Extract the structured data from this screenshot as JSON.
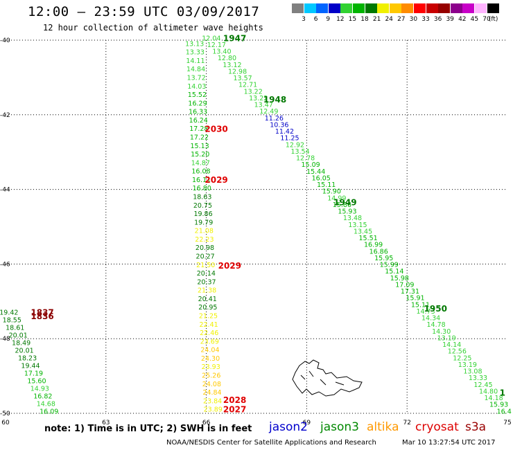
{
  "header": {
    "title": "12:00 — 23:59 UTC 03/09/2017",
    "subtitle": "12 hour collection of altimeter wave heights"
  },
  "color_scale": {
    "unit": "(ft)",
    "bins": [
      {
        "label": "3",
        "color": "#808080"
      },
      {
        "label": "6",
        "color": "#00c8ff"
      },
      {
        "label": "9",
        "color": "#0064ff"
      },
      {
        "label": "12",
        "color": "#0000c8"
      },
      {
        "label": "15",
        "color": "#32d232"
      },
      {
        "label": "18",
        "color": "#00b400"
      },
      {
        "label": "21",
        "color": "#007800"
      },
      {
        "label": "24",
        "color": "#f0f000"
      },
      {
        "label": "27",
        "color": "#ffc800"
      },
      {
        "label": "30",
        "color": "#ff8c00"
      },
      {
        "label": "33",
        "color": "#ff0000"
      },
      {
        "label": "36",
        "color": "#c80000"
      },
      {
        "label": "39",
        "color": "#960000"
      },
      {
        "label": "42",
        "color": "#8c008c"
      },
      {
        "label": "45",
        "color": "#c800c8"
      },
      {
        "label": "70",
        "color": "#ffb4ff"
      },
      {
        "label": "",
        "color": "#000000"
      }
    ]
  },
  "axes": {
    "lon_ticks": [
      "60",
      "63",
      "66",
      "69",
      "72",
      "75"
    ],
    "lat_ticks": [
      "-40",
      "-42",
      "-44",
      "-46",
      "-48",
      "-50"
    ],
    "lon_range": [
      60,
      75
    ],
    "lat_range": [
      -40,
      -50
    ]
  },
  "tracks": [
    {
      "values": [
        "13.13",
        "13.33",
        "14.11",
        "14.84",
        "13.72",
        "14.03",
        "15.52",
        "16.29",
        "16.33",
        "16.24",
        "17.28",
        "17.22",
        "15.13",
        "15.20",
        "14.87",
        "16.08",
        "16.11",
        "16.80",
        "18.63",
        "20.75",
        "19.86",
        "19.79",
        "21.08",
        "22.23",
        "20.98",
        "20.27",
        "21.50",
        "20.14",
        "20.37",
        "21.38",
        "20.41",
        "20.95",
        "21.25",
        "22.41",
        "22.46",
        "23.69",
        "24.04",
        "24.30",
        "23.93",
        "25.26",
        "24.08",
        "24.84",
        "23.84",
        "23.89"
      ],
      "lon0": 65.65,
      "lat0": -40.1,
      "lon1": 66.2,
      "lat1": -49.9,
      "labels": [
        {
          "text": "2030",
          "lon": 66.3,
          "lat": -42.38,
          "color": "#e00000"
        },
        {
          "text": "2029",
          "lon": 66.3,
          "lat": -43.75,
          "color": "#e00000"
        },
        {
          "text": "2029",
          "lon": 66.7,
          "lat": -46.05,
          "color": "#e00000"
        },
        {
          "text": "2028",
          "lon": 66.85,
          "lat": -49.65,
          "color": "#e00000"
        },
        {
          "text": "2027",
          "lon": 66.85,
          "lat": -49.9,
          "color": "#e00000"
        }
      ]
    },
    {
      "values": [
        "12.04",
        "12.17",
        "13.40",
        "12.80",
        "13.12",
        "12.98",
        "13.57",
        "12.71",
        "13.22",
        "13.22",
        "13.47",
        "12.49",
        "11.26",
        "10.36",
        "11.42",
        "11.25",
        "12.92",
        "13.54",
        "12.78",
        "15.09",
        "15.44",
        "16.05",
        "15.11",
        "15.90",
        "14.99",
        "15.86",
        "15.93",
        "13.48",
        "13.15",
        "13.45",
        "15.51",
        "16.99",
        "16.86",
        "15.95",
        "15.99",
        "15.14",
        "15.98",
        "17.09",
        "17.31",
        "15.91",
        "15.11",
        "14.73",
        "14.34",
        "14.78",
        "14.30",
        "13.19",
        "14.14",
        "12.56",
        "12.25",
        "13.19",
        "13.08",
        "13.33",
        "12.45",
        "14.80",
        "14.18",
        "15.93",
        "16.4"
      ],
      "lon0": 66.15,
      "lat0": -39.95,
      "lon1": 74.9,
      "lat1": -49.95,
      "labels": [
        {
          "text": "1947",
          "lon": 66.85,
          "lat": -39.95,
          "color": "#007800"
        },
        {
          "text": "1948",
          "lon": 68.05,
          "lat": -41.6,
          "color": "#007800"
        },
        {
          "text": "1949",
          "lon": 70.15,
          "lat": -44.35,
          "color": "#007800"
        },
        {
          "text": "1950",
          "lon": 72.85,
          "lat": -47.2,
          "color": "#007800"
        },
        {
          "text": "1",
          "lon": 74.85,
          "lat": -49.45,
          "color": "#007800"
        }
      ]
    },
    {
      "values": [
        "19.42",
        "18.55",
        "18.61",
        "20.01",
        "18.49",
        "20.01",
        "18.23",
        "19.44",
        "17.19",
        "15.60",
        "14.93",
        "16.82",
        "14.68",
        "16.09"
      ],
      "lon0": 60.1,
      "lat0": -47.3,
      "lon1": 61.3,
      "lat1": -49.95,
      "labels": [
        {
          "text": "1837",
          "lon": 61.1,
          "lat": -47.3,
          "color": "#8b0000"
        },
        {
          "text": "1836",
          "lon": 61.1,
          "lat": -47.4,
          "color": "#8b0000"
        }
      ]
    }
  ],
  "footer": {
    "note": "note:  1) Time is in UTC;  2) SWH is in feet",
    "satellites": [
      {
        "name": "jason2",
        "color": "#0000cc"
      },
      {
        "name": "jason3",
        "color": "#008800"
      },
      {
        "name": "altika",
        "color": "#ff9900"
      },
      {
        "name": "cryosat",
        "color": "#dd0000"
      },
      {
        "name": "s3a",
        "color": "#990000"
      }
    ],
    "credit": "NOAA/NESDIS Center for Satellite Applications and Research",
    "timestamp": "Mar 10 13:27:54 UTC 2017"
  }
}
